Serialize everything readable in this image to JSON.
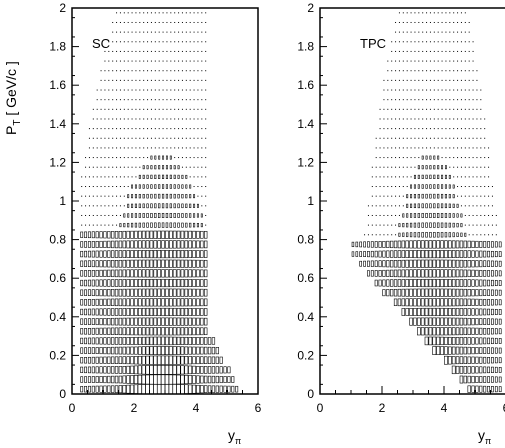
{
  "chart_data": [
    {
      "type": "heatmap",
      "title": "SC",
      "ylabel_main": "P",
      "ylabel_sub": "T",
      "ylabel_unit": "[ GeV/c ]",
      "xlabel_main": "y",
      "xlabel_sub": "π",
      "xlim": [
        0,
        6
      ],
      "ylim": [
        0,
        2
      ],
      "x_ticks": [
        "0",
        "2",
        "4",
        "6"
      ],
      "y_ticks": [
        "0",
        "0.2",
        "0.4",
        "0.6",
        "0.8",
        "1",
        "1.2",
        "1.4",
        "1.6",
        "1.8",
        "2"
      ],
      "acceptance": {
        "xmin": 0.3,
        "xmax": 4.35,
        "pt_full_below": 0.85,
        "sparse_tail_x": [
          4.4,
          5.5
        ]
      },
      "distribution": {
        "center_y": 2.9,
        "width_y": 1.2,
        "pt_slope": 4.0
      }
    },
    {
      "type": "heatmap",
      "title": "TPC",
      "xlabel_main": "y",
      "xlabel_sub": "π",
      "xlim": [
        0,
        6
      ],
      "ylim": [
        0,
        2
      ],
      "x_ticks": [
        "0",
        "2",
        "4",
        "6"
      ],
      "y_ticks": [
        "0",
        "0.2",
        "0.4",
        "0.6",
        "0.8",
        "1",
        "1.2",
        "1.4",
        "1.6",
        "1.8",
        "2"
      ],
      "acceptance": {
        "upper_edge_x": 5.9,
        "lower_edge_start": [
          1.0,
          0.72
        ],
        "lower_edge_end": [
          4.9,
          0.0
        ],
        "pt_full_below": 0.8
      },
      "distribution": {
        "center_y": 3.6,
        "width_y": 0.9,
        "pt_slope": 4.0
      }
    }
  ]
}
